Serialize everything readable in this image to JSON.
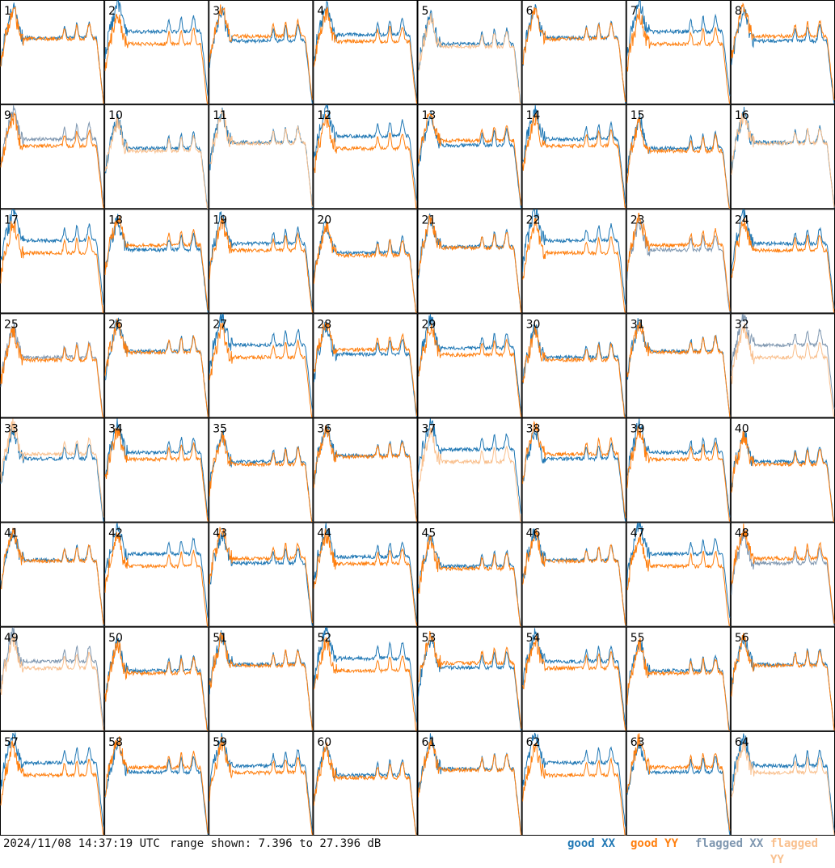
{
  "footer": {
    "timestamp": "2024/11/08 14:37:19 UTC",
    "range_text": "range shown: 7.396 to 27.396 dB"
  },
  "chart_data": {
    "type": "line",
    "grid": "8x8 small multiples",
    "range_db": [
      7.396,
      27.396
    ],
    "legend": [
      {
        "label": "good XX",
        "color": "#1f77b4"
      },
      {
        "label": "good YY",
        "color": "#ff7f0e"
      },
      {
        "label": "flagged XX",
        "color": "#7f97b0"
      },
      {
        "label": "flagged YY",
        "color": "#f9c08e"
      }
    ],
    "panels": [
      {
        "id": "1",
        "xx": "good",
        "yy": "good"
      },
      {
        "id": "2",
        "xx": "good",
        "yy": "good"
      },
      {
        "id": "3",
        "xx": "good",
        "yy": "good"
      },
      {
        "id": "4",
        "xx": "good",
        "yy": "good"
      },
      {
        "id": "5",
        "xx": "good",
        "yy": "flagged"
      },
      {
        "id": "6",
        "xx": "good",
        "yy": "good"
      },
      {
        "id": "7",
        "xx": "good",
        "yy": "good"
      },
      {
        "id": "8",
        "xx": "good",
        "yy": "good"
      },
      {
        "id": "9",
        "xx": "flagged",
        "yy": "good"
      },
      {
        "id": "10",
        "xx": "good",
        "yy": "flagged"
      },
      {
        "id": "11",
        "xx": "good",
        "yy": "flagged"
      },
      {
        "id": "12",
        "xx": "good",
        "yy": "good"
      },
      {
        "id": "13",
        "xx": "good",
        "yy": "good"
      },
      {
        "id": "14",
        "xx": "good",
        "yy": "good"
      },
      {
        "id": "15",
        "xx": "good",
        "yy": "good"
      },
      {
        "id": "16",
        "xx": "good",
        "yy": "flagged"
      },
      {
        "id": "17",
        "xx": "good",
        "yy": "good"
      },
      {
        "id": "18",
        "xx": "good",
        "yy": "good"
      },
      {
        "id": "19",
        "xx": "good",
        "yy": "good"
      },
      {
        "id": "20",
        "xx": "good",
        "yy": "good"
      },
      {
        "id": "21",
        "xx": "good",
        "yy": "good"
      },
      {
        "id": "22",
        "xx": "good",
        "yy": "good"
      },
      {
        "id": "23",
        "xx": "flagged",
        "yy": "good"
      },
      {
        "id": "24",
        "xx": "good",
        "yy": "good"
      },
      {
        "id": "25",
        "xx": "flagged",
        "yy": "good"
      },
      {
        "id": "26",
        "xx": "good",
        "yy": "good"
      },
      {
        "id": "27",
        "xx": "good",
        "yy": "good"
      },
      {
        "id": "28",
        "xx": "good",
        "yy": "good"
      },
      {
        "id": "29",
        "xx": "good",
        "yy": "good"
      },
      {
        "id": "30",
        "xx": "good",
        "yy": "good"
      },
      {
        "id": "31",
        "xx": "good",
        "yy": "good"
      },
      {
        "id": "32",
        "xx": "flagged",
        "yy": "flagged"
      },
      {
        "id": "33",
        "xx": "good",
        "yy": "flagged"
      },
      {
        "id": "34",
        "xx": "good",
        "yy": "good"
      },
      {
        "id": "35",
        "xx": "good",
        "yy": "good"
      },
      {
        "id": "36",
        "xx": "good",
        "yy": "good"
      },
      {
        "id": "37",
        "xx": "good",
        "yy": "flagged"
      },
      {
        "id": "38",
        "xx": "good",
        "yy": "good"
      },
      {
        "id": "39",
        "xx": "good",
        "yy": "good"
      },
      {
        "id": "40",
        "xx": "good",
        "yy": "good"
      },
      {
        "id": "41",
        "xx": "good",
        "yy": "good"
      },
      {
        "id": "42",
        "xx": "good",
        "yy": "good"
      },
      {
        "id": "43",
        "xx": "good",
        "yy": "good"
      },
      {
        "id": "44",
        "xx": "good",
        "yy": "good"
      },
      {
        "id": "45",
        "xx": "good",
        "yy": "good"
      },
      {
        "id": "46",
        "xx": "good",
        "yy": "good"
      },
      {
        "id": "47",
        "xx": "good",
        "yy": "good"
      },
      {
        "id": "48",
        "xx": "flagged",
        "yy": "good"
      },
      {
        "id": "49",
        "xx": "flagged",
        "yy": "flagged"
      },
      {
        "id": "50",
        "xx": "good",
        "yy": "good"
      },
      {
        "id": "51",
        "xx": "good",
        "yy": "good"
      },
      {
        "id": "52",
        "xx": "good",
        "yy": "good"
      },
      {
        "id": "53",
        "xx": "good",
        "yy": "good"
      },
      {
        "id": "54",
        "xx": "good",
        "yy": "good"
      },
      {
        "id": "55",
        "xx": "good",
        "yy": "good"
      },
      {
        "id": "56",
        "xx": "good",
        "yy": "good"
      },
      {
        "id": "57",
        "xx": "good",
        "yy": "good"
      },
      {
        "id": "58",
        "xx": "good",
        "yy": "good"
      },
      {
        "id": "59",
        "xx": "good",
        "yy": "good"
      },
      {
        "id": "60",
        "xx": "good",
        "yy": "good"
      },
      {
        "id": "61",
        "xx": "good",
        "yy": "good"
      },
      {
        "id": "62",
        "xx": "good",
        "yy": "good"
      },
      {
        "id": "63",
        "xx": "good",
        "yy": "good"
      },
      {
        "id": "64",
        "xx": "good",
        "yy": "flagged"
      }
    ]
  }
}
